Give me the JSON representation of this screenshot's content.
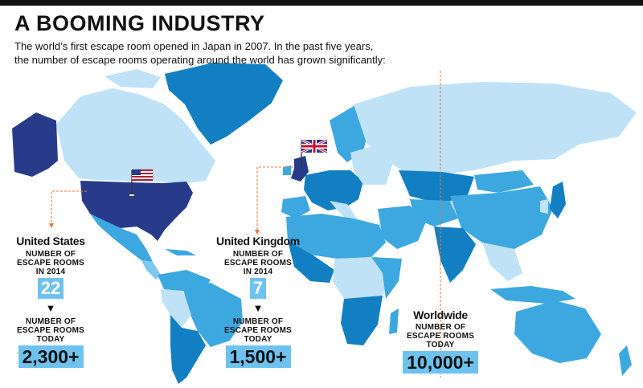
{
  "title": "A BOOMING INDUSTRY",
  "subtitle_line1": "The world’s first escape room opened in Japan in 2007. In the past five years,",
  "subtitle_line2": "the number of escape rooms operating around the world has grown significantly:",
  "labels": {
    "rooms_2014": [
      "NUMBER OF",
      "ESCAPE ROOMS",
      "IN 2014"
    ],
    "rooms_today": [
      "NUMBER OF",
      "ESCAPE ROOMS",
      "TODAY"
    ],
    "worldwide_rooms": [
      "NUMBER OF",
      "ESCAPE ROOMS",
      "TODAY"
    ]
  },
  "us": {
    "name": "United States",
    "count_2014": "22",
    "count_today": "2,300+"
  },
  "uk": {
    "name": "United Kingdom",
    "count_2014": "7",
    "count_today": "1,500+"
  },
  "worldwide": {
    "name": "Worldwide",
    "count_today": "10,000+"
  },
  "arrow_symbol": "▼",
  "colors": {
    "highlight_box": "#6ec3ee",
    "us_fill": "#283b8a",
    "land_light": "#bfe2f6",
    "land_mid": "#3da7e0",
    "land_dark": "#127fc3",
    "leader_line": "#e8743a"
  }
}
